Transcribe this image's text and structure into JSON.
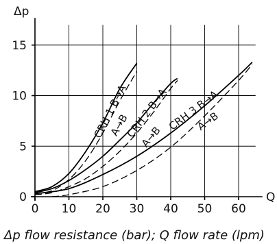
{
  "chart_data": {
    "type": "line",
    "xlabel": "Q",
    "ylabel": "Δp",
    "caption": "Δp flow resistance (bar); Q flow rate (lpm)",
    "xlim": [
      0,
      65
    ],
    "ylim": [
      0,
      17
    ],
    "xticks": [
      "0",
      "10",
      "20",
      "30",
      "40",
      "50",
      "60"
    ],
    "yticks": [
      "0",
      "5",
      "10",
      "15"
    ],
    "grid": true,
    "series": [
      {
        "name": "CRH 1 B→A",
        "style": "solid",
        "x": [
          0,
          5,
          10,
          15,
          20,
          25,
          30
        ],
        "y": [
          0.5,
          1.0,
          2.3,
          4.5,
          7.3,
          10.7,
          13.2
        ]
      },
      {
        "name": "CRH 1 A→B",
        "style": "dashed",
        "x": [
          0,
          5,
          10,
          15,
          20,
          25,
          30
        ],
        "y": [
          0.3,
          0.6,
          1.7,
          3.6,
          6.3,
          9.5,
          12.4
        ]
      },
      {
        "name": "CRH 2 B→A",
        "style": "solid",
        "x": [
          0,
          5,
          10,
          15,
          20,
          25,
          30,
          35,
          40,
          42
        ],
        "y": [
          0.4,
          0.8,
          1.6,
          2.7,
          4.0,
          5.6,
          7.3,
          9.3,
          11.2,
          11.7
        ]
      },
      {
        "name": "CRH 2 A→B",
        "style": "dashed",
        "x": [
          0,
          5,
          10,
          15,
          20,
          25,
          30,
          35,
          40,
          42
        ],
        "y": [
          0.2,
          0.4,
          1.0,
          1.8,
          3.0,
          4.5,
          6.3,
          8.4,
          10.7,
          11.5
        ]
      },
      {
        "name": "CRH 3 B→A",
        "style": "solid",
        "x": [
          0,
          10,
          20,
          30,
          40,
          50,
          60,
          64
        ],
        "y": [
          0.3,
          0.8,
          2.2,
          4.0,
          6.3,
          9.0,
          12.0,
          13.3
        ]
      },
      {
        "name": "CRH 3 A→B",
        "style": "dashed",
        "x": [
          5,
          10,
          20,
          30,
          40,
          50,
          60,
          64
        ],
        "y": [
          0.0,
          0.2,
          1.0,
          2.6,
          4.9,
          8.0,
          11.5,
          13.1
        ]
      }
    ],
    "labels": [
      {
        "text": "CRH 1 B→A",
        "series": 0
      },
      {
        "text": "A→B",
        "series": 1
      },
      {
        "text": "CRH 2 B→A",
        "series": 2
      },
      {
        "text": "A→B",
        "series": 3
      },
      {
        "text": "CRH 3 B→A",
        "series": 4
      },
      {
        "text": "A→B",
        "series": 5
      }
    ]
  }
}
